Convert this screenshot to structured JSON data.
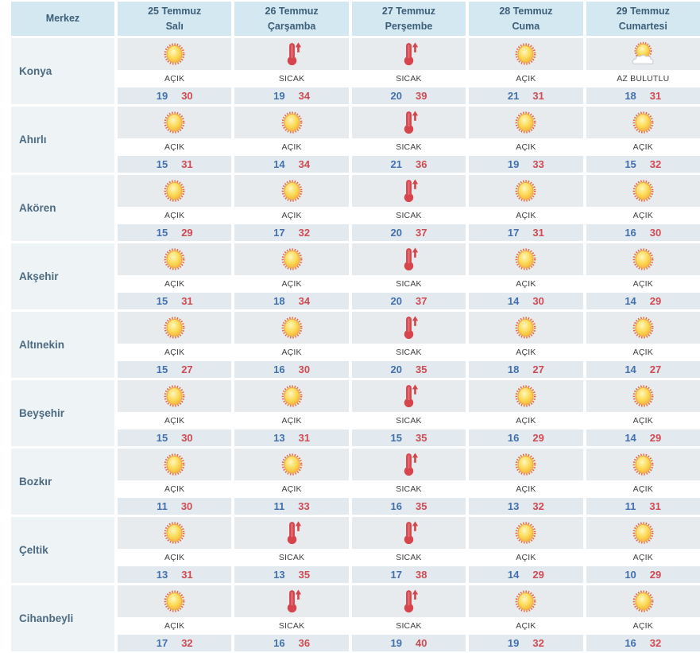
{
  "table": {
    "header": {
      "city_col": "Merkez",
      "days": [
        {
          "date": "25 Temmuz",
          "day": "Salı"
        },
        {
          "date": "26 Temmuz",
          "day": "Çarşamba"
        },
        {
          "date": "27 Temmuz",
          "day": "Perşembe"
        },
        {
          "date": "28 Temmuz",
          "day": "Cuma"
        },
        {
          "date": "29 Temmuz",
          "day": "Cumartesi"
        }
      ]
    },
    "rows": [
      {
        "city": "Konya",
        "cells": [
          {
            "icon": "sun",
            "cond": "AÇIK",
            "min": "19",
            "max": "30"
          },
          {
            "icon": "hot",
            "cond": "SICAK",
            "min": "19",
            "max": "34"
          },
          {
            "icon": "hot",
            "cond": "SICAK",
            "min": "20",
            "max": "39"
          },
          {
            "icon": "sun",
            "cond": "AÇIK",
            "min": "21",
            "max": "31"
          },
          {
            "icon": "partly-cloudy",
            "cond": "AZ BULUTLU",
            "min": "18",
            "max": "31"
          }
        ]
      },
      {
        "city": "Ahırlı",
        "cells": [
          {
            "icon": "sun",
            "cond": "AÇIK",
            "min": "15",
            "max": "31"
          },
          {
            "icon": "sun",
            "cond": "AÇIK",
            "min": "14",
            "max": "34"
          },
          {
            "icon": "hot",
            "cond": "SICAK",
            "min": "21",
            "max": "36"
          },
          {
            "icon": "sun",
            "cond": "AÇIK",
            "min": "19",
            "max": "33"
          },
          {
            "icon": "sun",
            "cond": "AÇIK",
            "min": "15",
            "max": "32"
          }
        ]
      },
      {
        "city": "Akören",
        "cells": [
          {
            "icon": "sun",
            "cond": "AÇIK",
            "min": "15",
            "max": "29"
          },
          {
            "icon": "sun",
            "cond": "AÇIK",
            "min": "17",
            "max": "32"
          },
          {
            "icon": "hot",
            "cond": "SICAK",
            "min": "20",
            "max": "37"
          },
          {
            "icon": "sun",
            "cond": "AÇIK",
            "min": "17",
            "max": "31"
          },
          {
            "icon": "sun",
            "cond": "AÇIK",
            "min": "16",
            "max": "30"
          }
        ]
      },
      {
        "city": "Akşehir",
        "cells": [
          {
            "icon": "sun",
            "cond": "AÇIK",
            "min": "15",
            "max": "31"
          },
          {
            "icon": "sun",
            "cond": "AÇIK",
            "min": "18",
            "max": "34"
          },
          {
            "icon": "hot",
            "cond": "SICAK",
            "min": "20",
            "max": "37"
          },
          {
            "icon": "sun",
            "cond": "AÇIK",
            "min": "14",
            "max": "30"
          },
          {
            "icon": "sun",
            "cond": "AÇIK",
            "min": "14",
            "max": "29"
          }
        ]
      },
      {
        "city": "Altınekin",
        "cells": [
          {
            "icon": "sun",
            "cond": "AÇIK",
            "min": "15",
            "max": "27"
          },
          {
            "icon": "sun",
            "cond": "AÇIK",
            "min": "16",
            "max": "30"
          },
          {
            "icon": "hot",
            "cond": "SICAK",
            "min": "20",
            "max": "35"
          },
          {
            "icon": "sun",
            "cond": "AÇIK",
            "min": "18",
            "max": "27"
          },
          {
            "icon": "sun",
            "cond": "AÇIK",
            "min": "14",
            "max": "27"
          }
        ]
      },
      {
        "city": "Beyşehir",
        "cells": [
          {
            "icon": "sun",
            "cond": "AÇIK",
            "min": "15",
            "max": "30"
          },
          {
            "icon": "sun",
            "cond": "AÇIK",
            "min": "13",
            "max": "31"
          },
          {
            "icon": "hot",
            "cond": "SICAK",
            "min": "15",
            "max": "35"
          },
          {
            "icon": "sun",
            "cond": "AÇIK",
            "min": "16",
            "max": "29"
          },
          {
            "icon": "sun",
            "cond": "AÇIK",
            "min": "14",
            "max": "29"
          }
        ]
      },
      {
        "city": "Bozkır",
        "cells": [
          {
            "icon": "sun",
            "cond": "AÇIK",
            "min": "11",
            "max": "30"
          },
          {
            "icon": "sun",
            "cond": "AÇIK",
            "min": "11",
            "max": "33"
          },
          {
            "icon": "hot",
            "cond": "SICAK",
            "min": "16",
            "max": "35"
          },
          {
            "icon": "sun",
            "cond": "AÇIK",
            "min": "13",
            "max": "32"
          },
          {
            "icon": "sun",
            "cond": "AÇIK",
            "min": "11",
            "max": "31"
          }
        ]
      },
      {
        "city": "Çeltik",
        "cells": [
          {
            "icon": "sun",
            "cond": "AÇIK",
            "min": "13",
            "max": "31"
          },
          {
            "icon": "hot",
            "cond": "SICAK",
            "min": "13",
            "max": "35"
          },
          {
            "icon": "hot",
            "cond": "SICAK",
            "min": "17",
            "max": "38"
          },
          {
            "icon": "sun",
            "cond": "AÇIK",
            "min": "14",
            "max": "29"
          },
          {
            "icon": "sun",
            "cond": "AÇIK",
            "min": "10",
            "max": "29"
          }
        ]
      },
      {
        "city": "Cihanbeyli",
        "cells": [
          {
            "icon": "sun",
            "cond": "AÇIK",
            "min": "17",
            "max": "32"
          },
          {
            "icon": "hot",
            "cond": "SICAK",
            "min": "16",
            "max": "36"
          },
          {
            "icon": "hot",
            "cond": "SICAK",
            "min": "19",
            "max": "40"
          },
          {
            "icon": "sun",
            "cond": "AÇIK",
            "min": "19",
            "max": "32"
          },
          {
            "icon": "sun",
            "cond": "AÇIK",
            "min": "16",
            "max": "32"
          }
        ]
      }
    ]
  },
  "colors": {
    "header_bg": "#d3e8f0",
    "header_text": "#3c5e79",
    "city_col_bg": "#eef3f6",
    "icon_row_bg": "#e7ebee",
    "temp_row_bg": "#e2eaf0",
    "min_temp": "#4270ae",
    "max_temp": "#cf4a52",
    "sun": "#fbd44c",
    "thermometer": "#d6454c"
  }
}
